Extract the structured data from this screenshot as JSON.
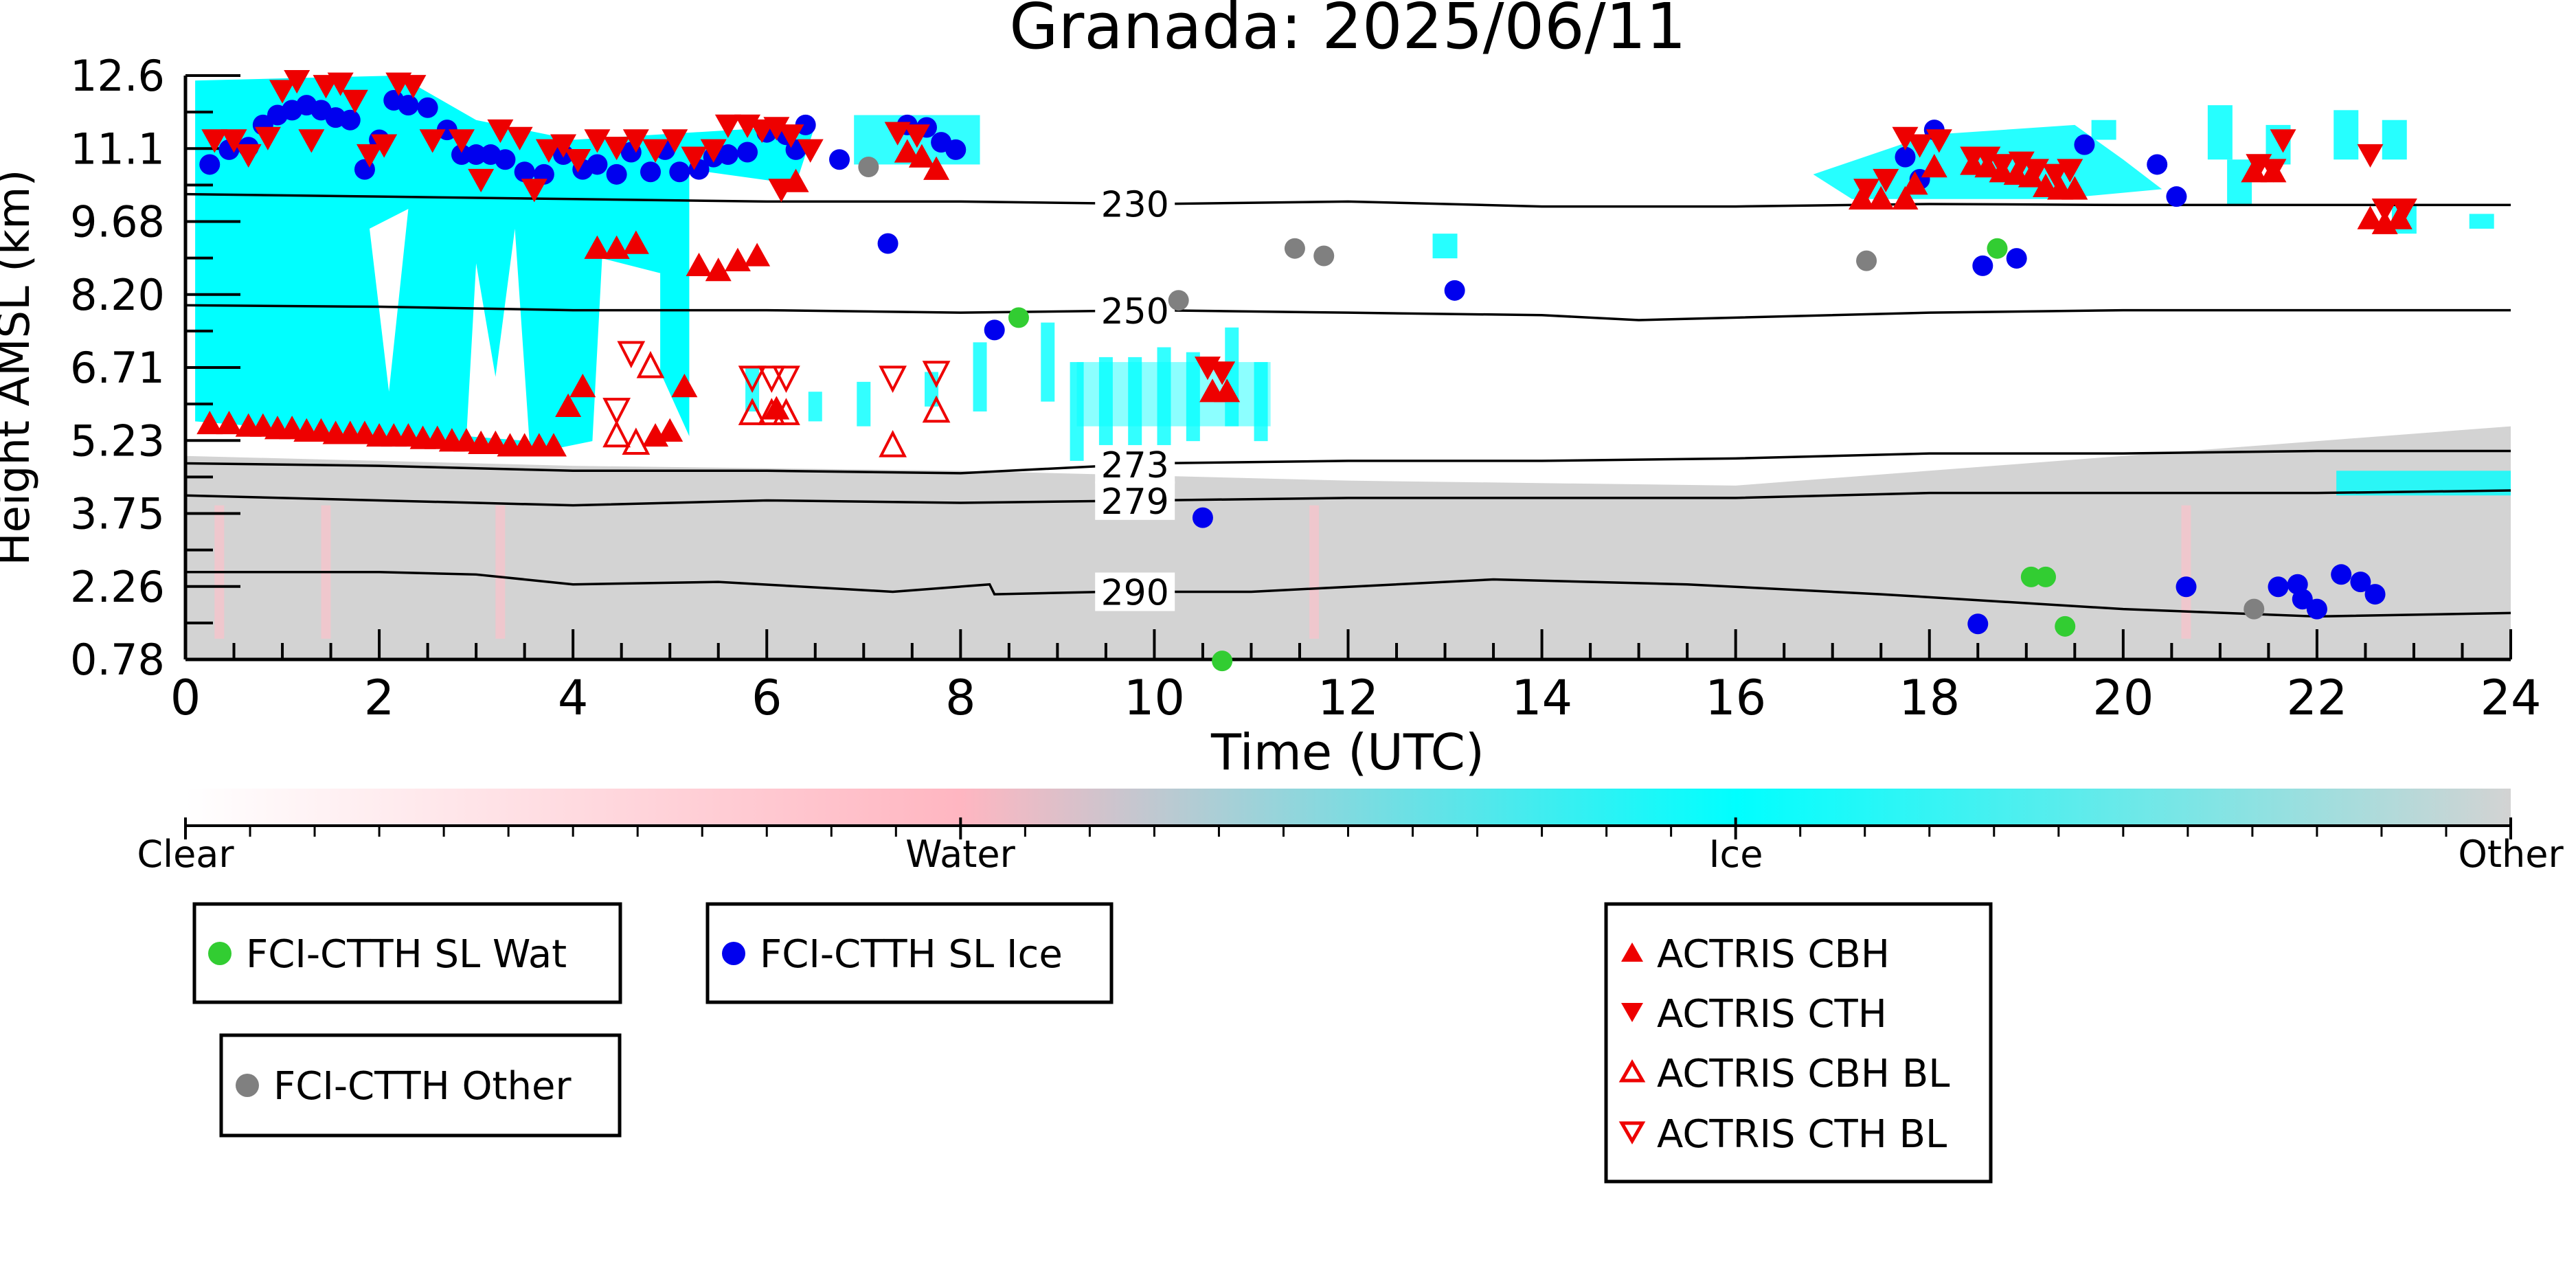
{
  "chart_data": {
    "type": "scatter",
    "title": "Granada: 2025/06/11",
    "xlabel": "Time (UTC)",
    "ylabel": "Height AMSL (km)",
    "xlim": [
      0,
      24
    ],
    "ylim": [
      0.78,
      12.6
    ],
    "x_ticks": [
      "0",
      "2",
      "4",
      "6",
      "8",
      "10",
      "12",
      "14",
      "16",
      "18",
      "20",
      "22",
      "24"
    ],
    "y_ticks": [
      "0.78",
      "2.26",
      "3.75",
      "5.23",
      "6.71",
      "8.20",
      "9.68",
      "11.1",
      "12.6"
    ],
    "background": "cloud phase mask (time-height)",
    "isotherms": [
      {
        "label": "230",
        "label_x": 9.8,
        "points": [
          [
            0,
            10.2
          ],
          [
            2,
            10.15
          ],
          [
            4,
            10.1
          ],
          [
            6,
            10.05
          ],
          [
            8,
            10.05
          ],
          [
            10,
            10.0
          ],
          [
            12,
            10.05
          ],
          [
            14,
            9.95
          ],
          [
            16,
            9.95
          ],
          [
            18,
            10.0
          ],
          [
            20,
            9.98
          ],
          [
            22,
            9.98
          ],
          [
            24,
            9.98
          ]
        ]
      },
      {
        "label": "250",
        "label_x": 9.8,
        "points": [
          [
            0,
            7.95
          ],
          [
            2,
            7.92
          ],
          [
            4,
            7.85
          ],
          [
            6,
            7.85
          ],
          [
            8,
            7.8
          ],
          [
            10,
            7.85
          ],
          [
            12,
            7.8
          ],
          [
            14,
            7.75
          ],
          [
            15,
            7.65
          ],
          [
            16,
            7.7
          ],
          [
            18,
            7.8
          ],
          [
            20,
            7.85
          ],
          [
            22,
            7.85
          ],
          [
            24,
            7.85
          ]
        ]
      },
      {
        "label": "273",
        "label_x": 9.8,
        "points": [
          [
            0,
            4.75
          ],
          [
            2,
            4.7
          ],
          [
            4,
            4.6
          ],
          [
            6,
            4.6
          ],
          [
            8,
            4.55
          ],
          [
            10,
            4.75
          ],
          [
            12,
            4.8
          ],
          [
            14,
            4.8
          ],
          [
            16,
            4.85
          ],
          [
            18,
            4.95
          ],
          [
            20,
            4.95
          ],
          [
            22,
            5.0
          ],
          [
            24,
            5.0
          ]
        ]
      },
      {
        "label": "279",
        "label_x": 9.8,
        "points": [
          [
            0,
            4.1
          ],
          [
            2,
            4.0
          ],
          [
            3,
            3.95
          ],
          [
            4,
            3.9
          ],
          [
            6,
            4.0
          ],
          [
            8,
            3.95
          ],
          [
            10,
            4.0
          ],
          [
            12,
            4.05
          ],
          [
            14,
            4.05
          ],
          [
            16,
            4.05
          ],
          [
            18,
            4.15
          ],
          [
            20,
            4.15
          ],
          [
            22,
            4.15
          ],
          [
            24,
            4.2
          ]
        ]
      },
      {
        "label": "290",
        "label_x": 9.8,
        "points": [
          [
            0,
            2.55
          ],
          [
            2,
            2.55
          ],
          [
            3,
            2.5
          ],
          [
            4,
            2.3
          ],
          [
            5.5,
            2.35
          ],
          [
            7.3,
            2.15
          ],
          [
            8.3,
            2.3
          ],
          [
            8.35,
            2.1
          ],
          [
            9.5,
            2.15
          ],
          [
            11,
            2.15
          ],
          [
            13.5,
            2.4
          ],
          [
            15.5,
            2.3
          ],
          [
            17.5,
            2.1
          ],
          [
            20,
            1.8
          ],
          [
            22,
            1.65
          ],
          [
            24,
            1.72
          ]
        ]
      }
    ],
    "series": [
      {
        "name": "FCI-CTTH SL Wat",
        "color": "#32cd32",
        "marker": "circle",
        "points": [
          [
            8.6,
            7.7
          ],
          [
            18.7,
            9.1
          ],
          [
            19.05,
            2.45
          ],
          [
            19.2,
            2.45
          ],
          [
            19.4,
            1.45
          ],
          [
            10.7,
            0.75
          ]
        ]
      },
      {
        "name": "FCI-CTTH SL Ice",
        "color": "#0000ee",
        "marker": "circle",
        "points": [
          [
            0.25,
            10.8
          ],
          [
            0.45,
            11.1
          ],
          [
            0.65,
            11.15
          ],
          [
            0.8,
            11.6
          ],
          [
            0.95,
            11.8
          ],
          [
            1.1,
            11.9
          ],
          [
            1.25,
            12.0
          ],
          [
            1.4,
            11.9
          ],
          [
            1.55,
            11.75
          ],
          [
            1.7,
            11.7
          ],
          [
            1.85,
            10.7
          ],
          [
            2.0,
            11.3
          ],
          [
            2.15,
            12.1
          ],
          [
            2.3,
            12.0
          ],
          [
            2.5,
            11.95
          ],
          [
            2.7,
            11.5
          ],
          [
            2.85,
            11.0
          ],
          [
            3.0,
            11.0
          ],
          [
            3.15,
            11.0
          ],
          [
            3.3,
            10.9
          ],
          [
            3.5,
            10.65
          ],
          [
            3.7,
            10.6
          ],
          [
            3.9,
            11.0
          ],
          [
            4.1,
            10.7
          ],
          [
            4.25,
            10.8
          ],
          [
            4.45,
            10.6
          ],
          [
            4.6,
            11.05
          ],
          [
            4.8,
            10.65
          ],
          [
            4.95,
            11.1
          ],
          [
            5.1,
            10.65
          ],
          [
            5.3,
            10.7
          ],
          [
            5.45,
            10.95
          ],
          [
            5.6,
            11.0
          ],
          [
            5.8,
            11.05
          ],
          [
            6.0,
            11.45
          ],
          [
            6.2,
            11.4
          ],
          [
            6.3,
            11.1
          ],
          [
            6.4,
            11.6
          ],
          [
            6.75,
            10.9
          ],
          [
            7.25,
            9.2
          ],
          [
            7.45,
            11.6
          ],
          [
            7.65,
            11.55
          ],
          [
            7.8,
            11.25
          ],
          [
            7.95,
            11.1
          ],
          [
            8.35,
            7.45
          ],
          [
            10.5,
            3.65
          ],
          [
            13.1,
            8.25
          ],
          [
            17.75,
            10.95
          ],
          [
            17.9,
            10.5
          ],
          [
            18.05,
            11.5
          ],
          [
            18.5,
            1.5
          ],
          [
            18.55,
            8.75
          ],
          [
            18.9,
            8.9
          ],
          [
            19.6,
            11.2
          ],
          [
            20.35,
            10.8
          ],
          [
            20.55,
            10.15
          ],
          [
            20.65,
            2.25
          ],
          [
            21.6,
            2.25
          ],
          [
            21.8,
            2.3
          ],
          [
            21.85,
            2.0
          ],
          [
            22.0,
            1.8
          ],
          [
            22.25,
            2.5
          ],
          [
            22.45,
            2.35
          ],
          [
            22.6,
            2.1
          ]
        ]
      },
      {
        "name": "FCI-CTTH Other",
        "color": "#808080",
        "marker": "circle",
        "points": [
          [
            7.05,
            10.75
          ],
          [
            10.25,
            8.05
          ],
          [
            11.45,
            9.1
          ],
          [
            11.75,
            8.95
          ],
          [
            17.35,
            8.85
          ],
          [
            21.35,
            1.8
          ]
        ]
      },
      {
        "name": "ACTRIS CBH",
        "color": "#ee0000",
        "marker": "triangle-up",
        "points": [
          [
            0.25,
            5.55
          ],
          [
            0.45,
            5.55
          ],
          [
            0.65,
            5.5
          ],
          [
            0.8,
            5.5
          ],
          [
            0.95,
            5.45
          ],
          [
            1.1,
            5.45
          ],
          [
            1.25,
            5.4
          ],
          [
            1.4,
            5.4
          ],
          [
            1.55,
            5.35
          ],
          [
            1.7,
            5.35
          ],
          [
            1.85,
            5.35
          ],
          [
            2.0,
            5.3
          ],
          [
            2.15,
            5.3
          ],
          [
            2.3,
            5.3
          ],
          [
            2.45,
            5.25
          ],
          [
            2.6,
            5.25
          ],
          [
            2.75,
            5.2
          ],
          [
            2.9,
            5.2
          ],
          [
            3.05,
            5.15
          ],
          [
            3.2,
            5.15
          ],
          [
            3.35,
            5.1
          ],
          [
            3.5,
            5.1
          ],
          [
            3.65,
            5.1
          ],
          [
            3.8,
            5.1
          ],
          [
            3.95,
            5.9
          ],
          [
            4.1,
            6.3
          ],
          [
            4.25,
            9.1
          ],
          [
            4.45,
            9.1
          ],
          [
            4.65,
            9.2
          ],
          [
            4.85,
            5.3
          ],
          [
            5.0,
            5.4
          ],
          [
            5.15,
            6.3
          ],
          [
            5.3,
            8.75
          ],
          [
            5.5,
            8.65
          ],
          [
            5.7,
            8.85
          ],
          [
            5.9,
            8.95
          ],
          [
            6.1,
            5.85
          ],
          [
            6.3,
            10.45
          ],
          [
            7.45,
            11.05
          ],
          [
            7.6,
            10.95
          ],
          [
            7.75,
            10.7
          ],
          [
            10.6,
            6.2
          ],
          [
            10.75,
            6.2
          ],
          [
            17.3,
            10.1
          ],
          [
            17.5,
            10.1
          ],
          [
            17.75,
            10.1
          ],
          [
            17.85,
            10.4
          ],
          [
            18.05,
            10.75
          ],
          [
            18.45,
            10.8
          ],
          [
            18.6,
            10.75
          ],
          [
            18.75,
            10.65
          ],
          [
            18.9,
            10.6
          ],
          [
            19.05,
            10.55
          ],
          [
            19.2,
            10.35
          ],
          [
            19.35,
            10.3
          ],
          [
            19.5,
            10.3
          ],
          [
            21.35,
            10.65
          ],
          [
            21.55,
            10.65
          ],
          [
            22.55,
            9.7
          ],
          [
            22.7,
            9.6
          ],
          [
            22.85,
            9.7
          ]
        ]
      },
      {
        "name": "ACTRIS CTH",
        "color": "#ee0000",
        "marker": "triangle-down",
        "points": [
          [
            0.3,
            11.3
          ],
          [
            0.5,
            11.3
          ],
          [
            0.65,
            11.0
          ],
          [
            0.85,
            11.35
          ],
          [
            1.0,
            12.3
          ],
          [
            1.15,
            12.5
          ],
          [
            1.3,
            11.3
          ],
          [
            1.45,
            12.4
          ],
          [
            1.6,
            12.45
          ],
          [
            1.75,
            12.1
          ],
          [
            1.9,
            11.0
          ],
          [
            2.05,
            11.2
          ],
          [
            2.2,
            12.45
          ],
          [
            2.35,
            12.4
          ],
          [
            2.55,
            11.3
          ],
          [
            2.85,
            11.3
          ],
          [
            3.05,
            10.5
          ],
          [
            3.25,
            11.5
          ],
          [
            3.45,
            11.35
          ],
          [
            3.6,
            10.3
          ],
          [
            3.75,
            11.1
          ],
          [
            3.9,
            11.2
          ],
          [
            4.05,
            10.9
          ],
          [
            4.25,
            11.3
          ],
          [
            4.45,
            11.15
          ],
          [
            4.65,
            11.3
          ],
          [
            4.85,
            11.1
          ],
          [
            5.05,
            11.3
          ],
          [
            5.25,
            10.95
          ],
          [
            5.45,
            11.1
          ],
          [
            5.6,
            11.6
          ],
          [
            5.8,
            11.6
          ],
          [
            5.95,
            11.5
          ],
          [
            6.1,
            11.55
          ],
          [
            6.25,
            11.4
          ],
          [
            6.45,
            11.1
          ],
          [
            6.15,
            10.3
          ],
          [
            7.35,
            11.45
          ],
          [
            7.55,
            11.4
          ],
          [
            10.55,
            6.7
          ],
          [
            10.7,
            6.6
          ],
          [
            17.35,
            10.3
          ],
          [
            17.55,
            10.5
          ],
          [
            17.75,
            11.35
          ],
          [
            17.9,
            11.2
          ],
          [
            18.1,
            11.3
          ],
          [
            18.45,
            10.95
          ],
          [
            18.6,
            10.95
          ],
          [
            18.75,
            10.8
          ],
          [
            18.95,
            10.85
          ],
          [
            19.1,
            10.7
          ],
          [
            19.3,
            10.6
          ],
          [
            19.45,
            10.7
          ],
          [
            21.4,
            10.8
          ],
          [
            21.55,
            10.7
          ],
          [
            21.65,
            11.3
          ],
          [
            22.55,
            11.0
          ],
          [
            22.7,
            9.9
          ],
          [
            22.9,
            9.9
          ]
        ]
      },
      {
        "name": "ACTRIS CBH BL",
        "color": "#ee0000",
        "marker": "triangle-up-open",
        "points": [
          [
            4.45,
            5.3
          ],
          [
            4.65,
            5.15
          ],
          [
            4.8,
            6.7
          ],
          [
            5.85,
            5.75
          ],
          [
            6.05,
            5.75
          ],
          [
            6.2,
            5.75
          ],
          [
            7.3,
            5.1
          ],
          [
            7.75,
            5.8
          ]
        ]
      },
      {
        "name": "ACTRIS CTH BL",
        "color": "#ee0000",
        "marker": "triangle-down-open",
        "points": [
          [
            4.45,
            5.85
          ],
          [
            4.6,
            7.0
          ],
          [
            5.85,
            6.5
          ],
          [
            6.05,
            6.5
          ],
          [
            6.2,
            6.5
          ],
          [
            7.3,
            6.5
          ],
          [
            7.75,
            6.6
          ]
        ]
      }
    ],
    "colorbar": {
      "labels": [
        "Clear",
        "Water",
        "Ice",
        "Other"
      ],
      "colors": [
        "#ffffff",
        "#ffb6c1",
        "#00ffff",
        "#d3d3d3"
      ]
    },
    "legend_boxes": [
      {
        "entries": [
          "FCI-CTTH SL Wat"
        ]
      },
      {
        "entries": [
          "FCI-CTTH SL Ice"
        ]
      },
      {
        "entries": [
          "FCI-CTTH Other"
        ]
      },
      {
        "entries": [
          "ACTRIS CBH",
          "ACTRIS CTH",
          "ACTRIS CBH BL",
          "ACTRIS CTH BL"
        ]
      }
    ]
  }
}
